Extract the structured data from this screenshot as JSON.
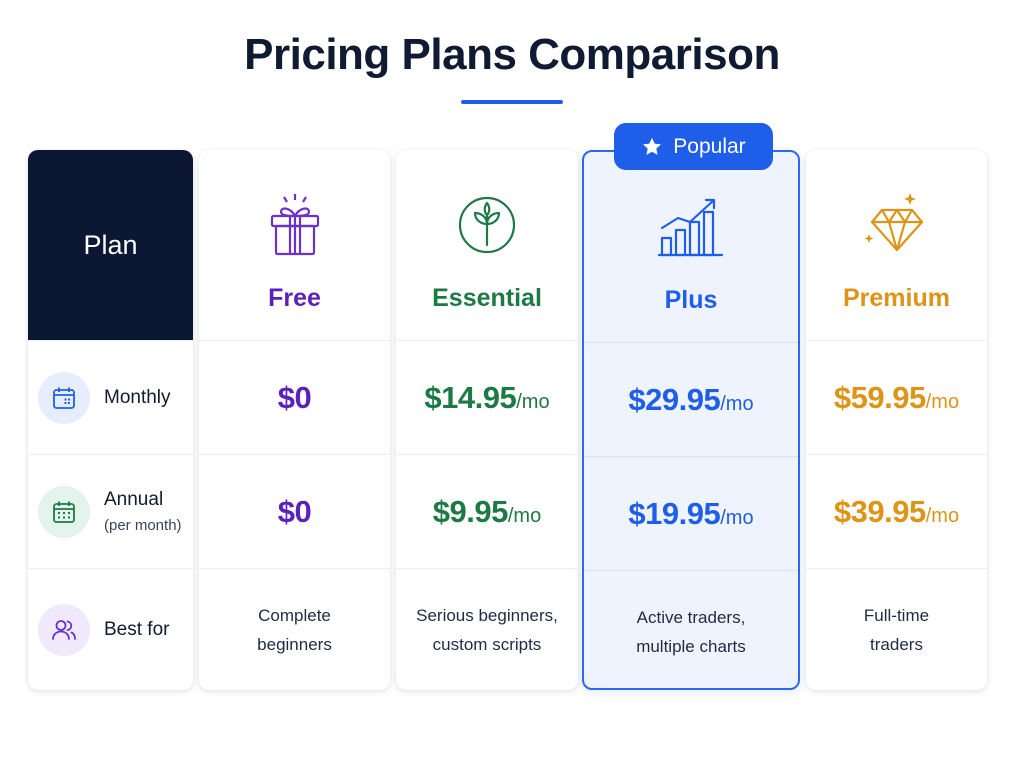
{
  "title": "Pricing Plans Comparison",
  "colors": {
    "accent": "#1f5ee8",
    "header_bg": "#0c1733",
    "free": "#5a22b8",
    "essential": "#1e7a45",
    "plus": "#1f5ee8",
    "premium": "#dd9418"
  },
  "popular_badge": {
    "label": "Popular",
    "icon": "star-icon"
  },
  "label_column": {
    "header": "Plan",
    "rows": [
      {
        "label": "Monthly",
        "sub": "",
        "icon": "calendar-icon"
      },
      {
        "label": "Annual",
        "sub": "(per month)",
        "icon": "calendar-grid-icon"
      },
      {
        "label": "Best for",
        "sub": "",
        "icon": "users-icon"
      }
    ]
  },
  "plans": [
    {
      "name": "Free",
      "icon": "gift-icon",
      "monthly": {
        "amount": "$0",
        "unit": ""
      },
      "annual": {
        "amount": "$0",
        "unit": ""
      },
      "best_for": [
        "Complete",
        "beginners"
      ]
    },
    {
      "name": "Essential",
      "icon": "leaf-icon",
      "monthly": {
        "amount": "$14.95",
        "unit": "/mo"
      },
      "annual": {
        "amount": "$9.95",
        "unit": "/mo"
      },
      "best_for": [
        "Serious beginners,",
        "custom scripts"
      ]
    },
    {
      "name": "Plus",
      "icon": "growth-chart-icon",
      "monthly": {
        "amount": "$29.95",
        "unit": "/mo"
      },
      "annual": {
        "amount": "$19.95",
        "unit": "/mo"
      },
      "best_for": [
        "Active traders,",
        "multiple charts"
      ]
    },
    {
      "name": "Premium",
      "icon": "diamond-icon",
      "monthly": {
        "amount": "$59.95",
        "unit": "/mo"
      },
      "annual": {
        "amount": "$39.95",
        "unit": "/mo"
      },
      "best_for": [
        "Full-time",
        "traders"
      ]
    }
  ]
}
